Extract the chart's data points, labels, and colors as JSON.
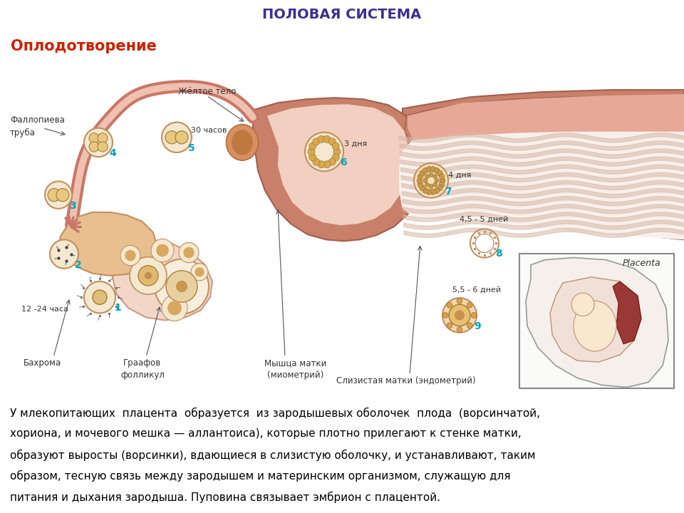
{
  "header_text": "ПОЛОВАЯ СИСТЕМА",
  "header_bg": "#7DC8D8",
  "header_text_color": "#3B3090",
  "title_text": "Оплодотворение",
  "title_color": "#CC2200",
  "background_color": "#FFFFFF",
  "body_text_line1": "У млекопитающих  плацента  образуется  из зародышевых оболочек  плода  (ворсинчатой,",
  "body_text_line2": "хориона, и мочевого мешка — аллантоиса), которые плотно прилегают к стенке матки,",
  "body_text_line3": "образуют выросты (ворсинки), вдающиеся в слизистую оболочку, и устанавливают, таким",
  "body_text_line4": "образом, тесную связь между зародышем и материнским организмом, служащую для",
  "body_text_line5": "питания и дыхания зародыша. Пуповина связывает эмбрион с плацентой.",
  "body_text_color": "#000000",
  "label_fallopian": "Фаллопиева\nтруба",
  "label_yellow_body": "Жёлтое тело",
  "label_bahroma": "Бахрома",
  "label_graafov": "Граафов\nфолликул",
  "label_myometrium": "Мышца матки\n(миометрий)",
  "label_endometrium": "Слизистая матки (эндометрий)",
  "label_placenta": "Placenta",
  "label_12_24": "12 -24 часа",
  "label_30h": "30 часов",
  "label_3d": "3 дня",
  "label_4d": "4 дня",
  "label_45d": "4,5 - 5 дней",
  "label_56d": "5,5 - 6 дней",
  "stage_color": "#00A0C0",
  "tube_color": "#C87868",
  "tube_inner": "#F0C0B0",
  "uterus_wall": "#C8806A",
  "uterus_inner": "#E8A898",
  "endometrium_fill": "#F0D0C0",
  "cell_fill": "#F5E8D0",
  "cell_edge": "#C09060",
  "graaf_fill": "#F0D8C0",
  "ovary_fill": "#E8C890"
}
